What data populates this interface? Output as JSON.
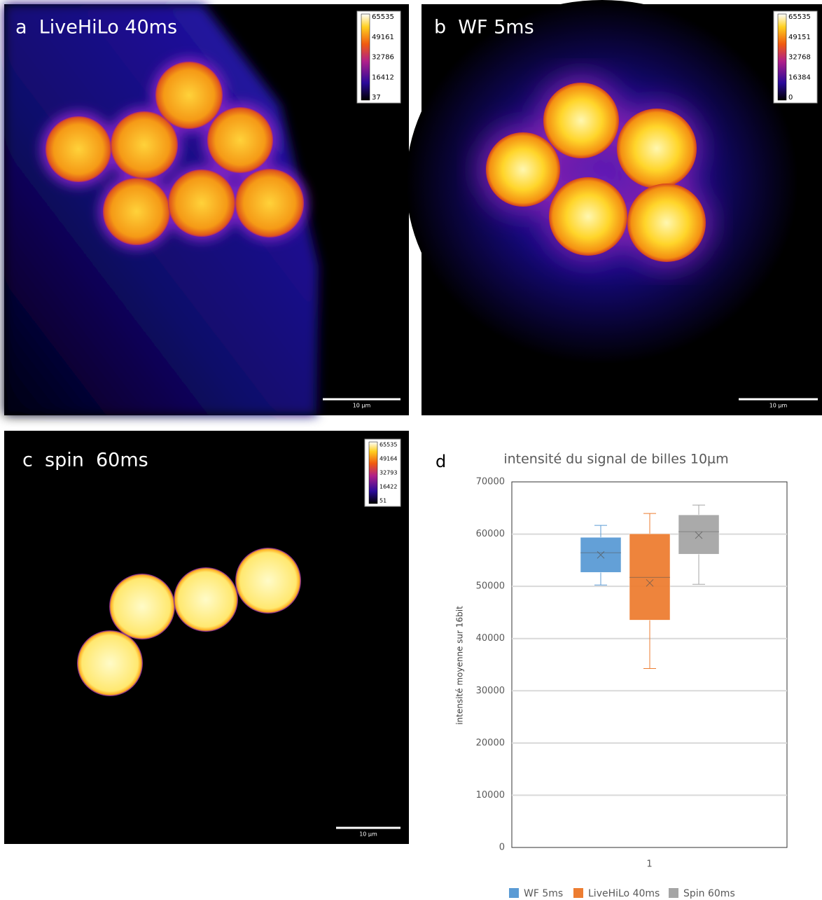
{
  "panels": [
    {
      "label": "a  LiveHiLo 40ms",
      "colorbar": [
        65535,
        49161,
        32786,
        16412,
        37
      ],
      "scale_bar": "10 µm"
    },
    {
      "label": "b  WF 5ms",
      "colorbar": [
        65535,
        49151,
        32768,
        16384,
        0
      ],
      "scale_bar": "10 µm"
    },
    {
      "label": "c  spin  60ms",
      "colorbar": [
        65535,
        49164,
        32793,
        16422,
        51
      ],
      "scale_bar": "10 µm"
    }
  ],
  "chart_data": {
    "type": "box",
    "panel_label": "d",
    "title": "intensité du signal de billes 10µm",
    "y_label": "intensité moyenne sur 16bit",
    "categories": [
      "1"
    ],
    "series": [
      {
        "name": "WF 5ms",
        "color": "#5b9bd5",
        "min": 50250,
        "q1": 52670,
        "median": 56430,
        "q3": 59380,
        "max": 61670,
        "mean": 56020
      },
      {
        "name": "LiveHiLo 40ms",
        "color": "#ed7d31",
        "min": 34260,
        "q1": 43530,
        "median": 51720,
        "q3": 60060,
        "max": 63950,
        "mean": 50650
      },
      {
        "name": "Spin 60ms",
        "color": "#a5a5a5",
        "min": 50380,
        "q1": 56160,
        "median": 60460,
        "q3": 63680,
        "max": 65560,
        "mean": 59790
      }
    ],
    "ylim": [
      0,
      70000
    ],
    "yticks": [
      0,
      10000,
      20000,
      30000,
      40000,
      50000,
      60000,
      70000
    ],
    "grid": true
  }
}
